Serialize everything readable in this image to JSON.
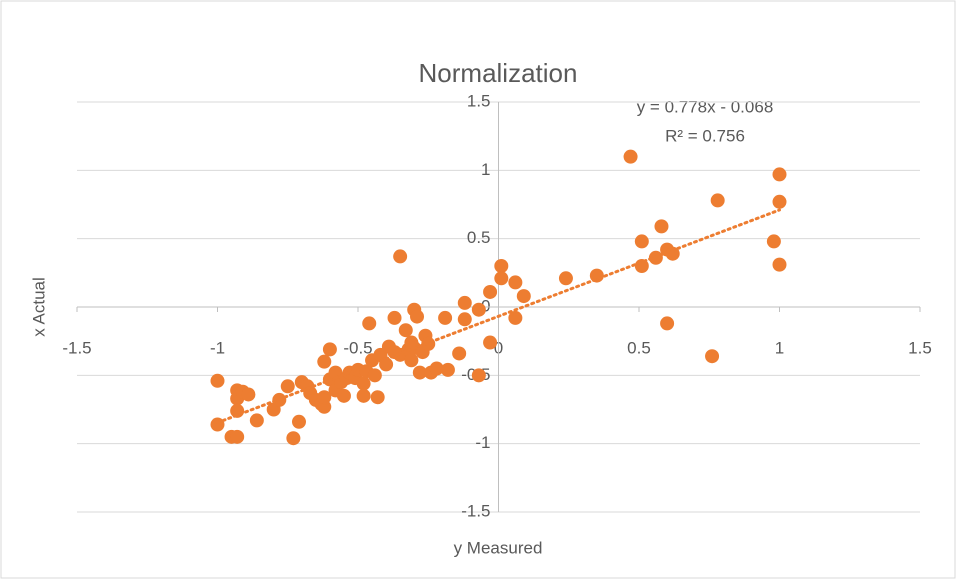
{
  "chart_data": {
    "type": "scatter",
    "title": "Normalization",
    "x_label": "y Measured",
    "y_label": "x Actual",
    "color": "#ed7d31",
    "grid": true,
    "xlim": [
      -1.5,
      1.5
    ],
    "xticks": [
      -1.5,
      -1,
      -0.5,
      0,
      0.5,
      1,
      1.5
    ],
    "ylim": [
      -1.5,
      1.5
    ],
    "yticks": [
      -1.5,
      -1,
      -0.5,
      0,
      0.5,
      1,
      1.5
    ],
    "x": [
      -1.0,
      -1.0,
      -0.95,
      -0.93,
      -0.93,
      -0.93,
      -0.93,
      -0.91,
      -0.89,
      -0.86,
      -0.8,
      -0.78,
      -0.75,
      -0.73,
      -0.71,
      -0.7,
      -0.68,
      -0.67,
      -0.65,
      -0.63,
      -0.62,
      -0.62,
      -0.62,
      -0.6,
      -0.6,
      -0.58,
      -0.58,
      -0.56,
      -0.55,
      -0.54,
      -0.53,
      -0.51,
      -0.5,
      -0.48,
      -0.48,
      -0.47,
      -0.46,
      -0.45,
      -0.44,
      -0.43,
      -0.42,
      -0.4,
      -0.39,
      -0.37,
      -0.37,
      -0.35,
      -0.35,
      -0.33,
      -0.32,
      -0.31,
      -0.31,
      -0.3,
      -0.3,
      -0.29,
      -0.28,
      -0.27,
      -0.26,
      -0.25,
      -0.24,
      -0.22,
      -0.19,
      -0.18,
      -0.14,
      -0.12,
      -0.12,
      -0.07,
      -0.07,
      -0.03,
      -0.03,
      0.01,
      0.01,
      0.06,
      0.06,
      0.09,
      0.24,
      0.35,
      0.47,
      0.51,
      0.51,
      0.56,
      0.58,
      0.6,
      0.6,
      0.62,
      0.76,
      0.78,
      0.98,
      1.0,
      1.0,
      1.0
    ],
    "values": [
      -0.54,
      -0.86,
      -0.95,
      -0.95,
      -0.61,
      -0.67,
      -0.76,
      -0.62,
      -0.64,
      -0.83,
      -0.75,
      -0.68,
      -0.58,
      -0.96,
      -0.84,
      -0.55,
      -0.58,
      -0.63,
      -0.68,
      -0.71,
      -0.73,
      -0.66,
      -0.4,
      -0.31,
      -0.53,
      -0.48,
      -0.61,
      -0.55,
      -0.65,
      -0.52,
      -0.48,
      -0.52,
      -0.46,
      -0.56,
      -0.65,
      -0.47,
      -0.12,
      -0.39,
      -0.5,
      -0.66,
      -0.35,
      -0.42,
      -0.29,
      -0.33,
      -0.08,
      0.37,
      -0.35,
      -0.17,
      -0.31,
      -0.39,
      -0.26,
      -0.02,
      -0.3,
      -0.07,
      -0.48,
      -0.33,
      -0.21,
      -0.27,
      -0.48,
      -0.45,
      -0.08,
      -0.46,
      -0.34,
      0.03,
      -0.09,
      -0.5,
      -0.02,
      0.11,
      -0.26,
      0.3,
      0.21,
      0.18,
      -0.08,
      0.08,
      0.21,
      0.23,
      1.1,
      0.48,
      0.3,
      0.36,
      0.59,
      0.42,
      -0.12,
      0.39,
      -0.36,
      0.78,
      0.48,
      0.97,
      0.77,
      0.31
    ],
    "trendline": {
      "slope": 0.778,
      "intercept": -0.068,
      "equation": "y = 0.778x - 0.068",
      "r_squared_label": "R² = 0.756"
    }
  }
}
